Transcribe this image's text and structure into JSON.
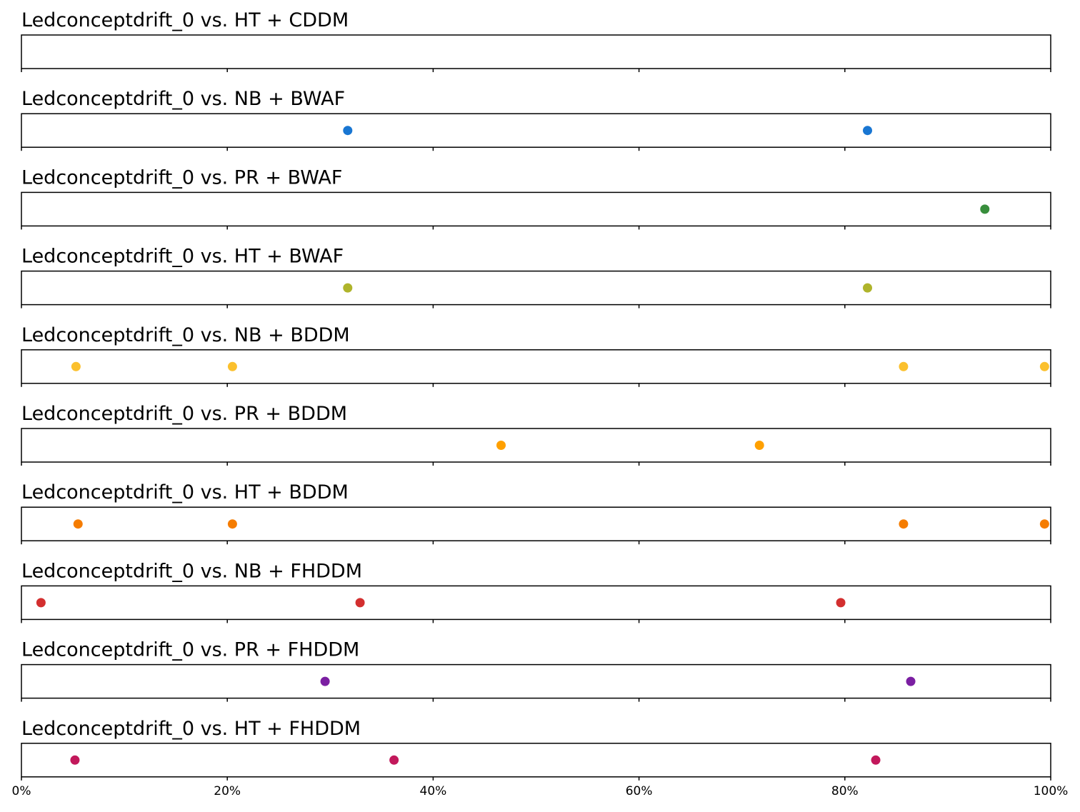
{
  "chart_data": {
    "type": "scatter",
    "x_axis": {
      "range": [
        0,
        100
      ],
      "ticks": [
        0,
        20,
        40,
        60,
        80,
        100
      ],
      "tick_labels": [
        "0%",
        "20%",
        "40%",
        "60%",
        "80%",
        "100%"
      ]
    },
    "grid": false,
    "panels": [
      {
        "title": "Ledconceptdrift_0 vs. HT + CDDM",
        "color": "#1f77b4",
        "x": []
      },
      {
        "title": "Ledconceptdrift_0 vs. NB + BWAF",
        "color": "#1976d2",
        "x": [
          31.7,
          82.2
        ]
      },
      {
        "title": "Ledconceptdrift_0 vs. PR + BWAF",
        "color": "#388e3c",
        "x": [
          93.6
        ]
      },
      {
        "title": "Ledconceptdrift_0 vs. HT + BWAF",
        "color": "#afb42b",
        "x": [
          31.7,
          82.2
        ]
      },
      {
        "title": "Ledconceptdrift_0 vs. NB + BDDM",
        "color": "#fbc02d",
        "x": [
          5.3,
          20.5,
          85.7,
          99.4
        ]
      },
      {
        "title": "Ledconceptdrift_0 vs. PR + BDDM",
        "color": "#ffa000",
        "x": [
          46.6,
          71.7
        ]
      },
      {
        "title": "Ledconceptdrift_0 vs. HT + BDDM",
        "color": "#f57c00",
        "x": [
          5.5,
          20.5,
          85.7,
          99.4
        ]
      },
      {
        "title": "Ledconceptdrift_0 vs. NB + FHDDM",
        "color": "#d32f2f",
        "x": [
          1.9,
          32.9,
          79.6
        ]
      },
      {
        "title": "Ledconceptdrift_0 vs. PR + FHDDM",
        "color": "#7b1fa2",
        "x": [
          29.5,
          86.4
        ]
      },
      {
        "title": "Ledconceptdrift_0 vs. HT + FHDDM",
        "color": "#c2185b",
        "x": [
          5.2,
          36.2,
          83.0
        ]
      }
    ]
  }
}
